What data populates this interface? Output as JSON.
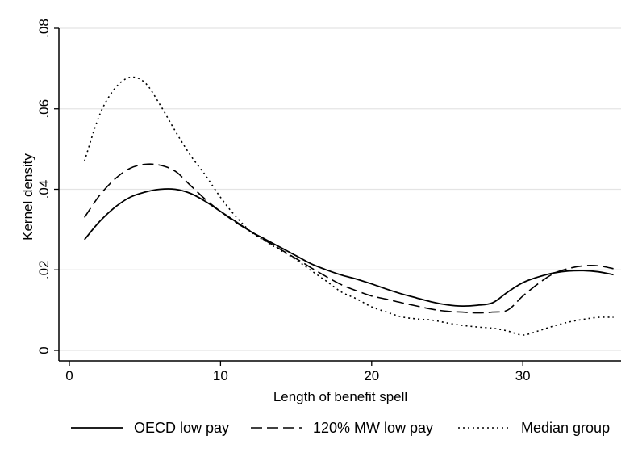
{
  "chart_data": {
    "type": "line",
    "title": "",
    "xlabel": "Length of benefit spell",
    "ylabel": "Kernel density",
    "xlim": [
      0,
      36.5
    ],
    "ylim": [
      0,
      0.08
    ],
    "x_ticks": [
      0,
      10,
      20,
      30
    ],
    "x_tick_labels": [
      "0",
      "10",
      "20",
      "30"
    ],
    "y_ticks": [
      0,
      0.02,
      0.04,
      0.06,
      0.08
    ],
    "y_tick_labels": [
      "0",
      ".02",
      ".04",
      ".06",
      ".08"
    ],
    "grid": "horizontal",
    "legend_position": "bottom",
    "series": [
      {
        "name": "OECD low pay",
        "style": "solid",
        "color": "#000000",
        "x": [
          1,
          2,
          3,
          4,
          5,
          6,
          7,
          8,
          9,
          10,
          11,
          12,
          13,
          14,
          15,
          16,
          17,
          18,
          19,
          20,
          21,
          22,
          23,
          24,
          25,
          26,
          27,
          28,
          29,
          30,
          31,
          32,
          33,
          34,
          35,
          36
        ],
        "y": [
          0.0275,
          0.032,
          0.0355,
          0.038,
          0.0393,
          0.04,
          0.04,
          0.039,
          0.037,
          0.0345,
          0.032,
          0.0295,
          0.0275,
          0.0255,
          0.0235,
          0.0215,
          0.02,
          0.0187,
          0.0177,
          0.0165,
          0.0152,
          0.014,
          0.013,
          0.012,
          0.0113,
          0.011,
          0.0112,
          0.0118,
          0.0145,
          0.0168,
          0.0182,
          0.0192,
          0.0197,
          0.0198,
          0.0195,
          0.0188
        ]
      },
      {
        "name": "120% MW low pay",
        "style": "dashed",
        "color": "#000000",
        "x": [
          1,
          2,
          3,
          4,
          5,
          6,
          7,
          8,
          9,
          10,
          11,
          12,
          13,
          14,
          15,
          16,
          17,
          18,
          19,
          20,
          21,
          22,
          23,
          24,
          25,
          26,
          27,
          28,
          29,
          30,
          31,
          32,
          33,
          34,
          35,
          36
        ],
        "y": [
          0.033,
          0.0385,
          0.0425,
          0.0452,
          0.0462,
          0.046,
          0.0445,
          0.041,
          0.0375,
          0.0345,
          0.0318,
          0.0295,
          0.0272,
          0.025,
          0.0228,
          0.0205,
          0.0183,
          0.0163,
          0.0148,
          0.0135,
          0.0127,
          0.0118,
          0.011,
          0.0102,
          0.0097,
          0.0095,
          0.0093,
          0.0095,
          0.01,
          0.0135,
          0.0165,
          0.019,
          0.0203,
          0.021,
          0.021,
          0.0203
        ]
      },
      {
        "name": "Median group",
        "style": "dotted",
        "color": "#000000",
        "x": [
          1,
          2,
          3,
          4,
          5,
          6,
          7,
          8,
          9,
          10,
          11,
          12,
          13,
          14,
          15,
          16,
          17,
          18,
          19,
          20,
          21,
          22,
          23,
          24,
          25,
          26,
          27,
          28,
          29,
          30,
          31,
          32,
          33,
          34,
          35,
          36
        ],
        "y": [
          0.047,
          0.0585,
          0.065,
          0.0678,
          0.0665,
          0.061,
          0.0545,
          0.0485,
          0.0435,
          0.038,
          0.0333,
          0.0295,
          0.027,
          0.0248,
          0.0225,
          0.0198,
          0.0172,
          0.0145,
          0.0128,
          0.0108,
          0.0095,
          0.0083,
          0.0078,
          0.0075,
          0.0068,
          0.0062,
          0.0058,
          0.0055,
          0.0048,
          0.0038,
          0.0048,
          0.006,
          0.007,
          0.0077,
          0.0082,
          0.0082
        ]
      }
    ]
  }
}
